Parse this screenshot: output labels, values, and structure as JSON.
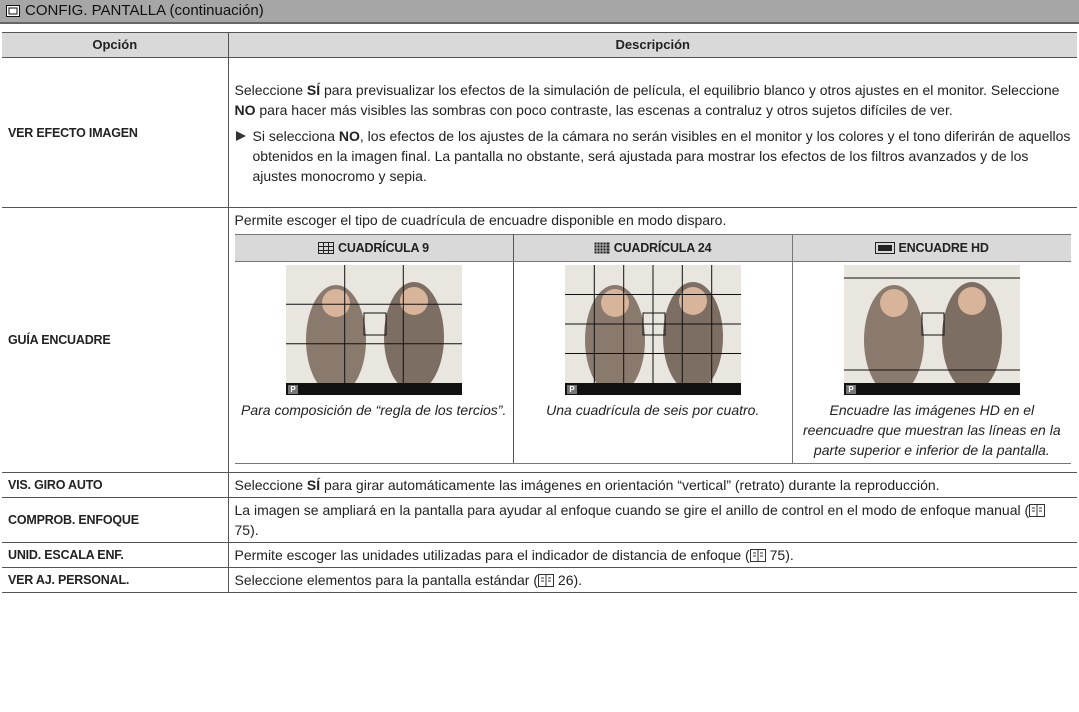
{
  "header": {
    "title": "CONFIG. PANTALLA (continuación)"
  },
  "table": {
    "columns": [
      "Opción",
      "Descripción"
    ],
    "rows": [
      {
        "option": "VER EFECTO IMAGEN",
        "description": [
          "Seleccione ",
          "SÍ",
          " para previsualizar los efectos de la simulación de película, el equilibrio blanco y otros ajustes en el monitor. Seleccione ",
          "NO",
          " para hacer más visibles las sombras con poco contraste, las escenas a contraluz y otros sujetos difíciles de ver."
        ],
        "note": [
          "Si selecciona ",
          "NO",
          ", los efectos de los ajustes de la cámara no serán visibles en el monitor y los colores y el tono diferirán de aquellos obtenidos en la imagen final. La pantalla no obstante, será ajustada para mostrar los efectos de los filtros avanzados y de los ajustes monocromo y sepia."
        ]
      },
      {
        "option": "GUÍA ENCUADRE",
        "description": [
          "Permite escoger el tipo de cuadrícula de encuadre disponible en modo disparo."
        ],
        "image_label": "P",
        "guides": [
          {
            "title": "CUADRÍCULA 9",
            "caption": "Para composición de “regla de los tercios”."
          },
          {
            "title": "CUADRÍCULA 24",
            "caption": "Una cuadrícula de seis por cuatro."
          },
          {
            "title": "ENCUADRE HD",
            "caption": "Encuadre las imágenes HD en el reencuadre que muestran las líneas en la parte superior e inferior de la pantalla."
          }
        ]
      },
      {
        "option": "VIS. GIRO AUTO",
        "description": [
          "Seleccione ",
          "SÍ",
          " para girar automáticamente las imágenes en orientación “vertical” (retrato) durante la reproducción."
        ]
      },
      {
        "option": "COMPROB. ENFOQUE",
        "description": [
          "La imagen se ampliará en la pantalla para ayudar al enfoque cuando se gire el anillo de control en el modo de enfoque manual (",
          "75",
          ")."
        ]
      },
      {
        "option": "UNID. ESCALA ENF.",
        "description": [
          "Permite escoger las unidades utilizadas para el indicador de distancia de enfoque (",
          "75",
          ")."
        ]
      },
      {
        "option": "VER AJ. PERSONAL.",
        "description": [
          "Seleccione elementos para la pantalla estándar (",
          "26",
          ")."
        ]
      }
    ]
  }
}
